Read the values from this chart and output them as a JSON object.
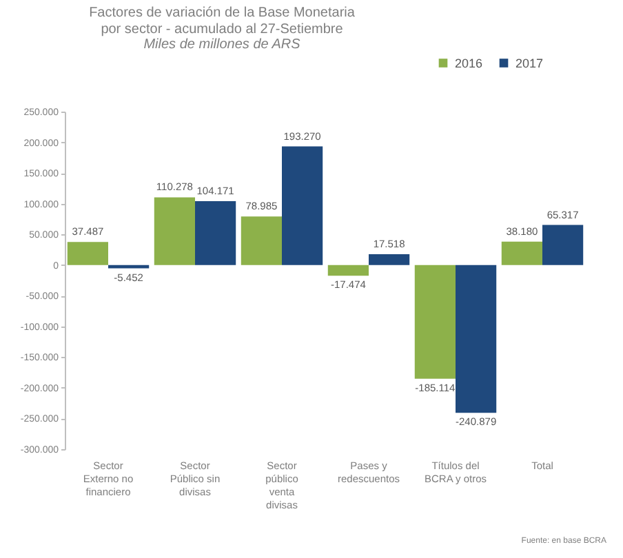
{
  "chart_data": {
    "type": "bar",
    "title": "Factores de variación de la Base Monetaria por sector - acumulado al 27-Setiembre",
    "subtitle": "Miles de millones de ARS",
    "categories": [
      "Sector Externo no financiero",
      "Sector Público sin divisas",
      "Sector público venta divisas",
      "Pases y redescuentos",
      "Títulos del BCRA y otros",
      "Total"
    ],
    "series": [
      {
        "name": "2016",
        "color": "#8db14a",
        "values": [
          37487,
          110278,
          78985,
          -17474,
          -185114,
          38180
        ],
        "value_labels": [
          "37.487",
          "110.278",
          "78.985",
          "-17.474",
          "-185.114",
          "38.180"
        ]
      },
      {
        "name": "2017",
        "color": "#1f497d",
        "values": [
          -5452,
          104171,
          193270,
          17518,
          -240879,
          65317
        ],
        "value_labels": [
          "-5.452",
          "104.171",
          "193.270",
          "17.518",
          "-240.879",
          "65.317"
        ]
      }
    ],
    "ylim": [
      -300000,
      250000
    ],
    "yticks": [
      {
        "value": -300000,
        "label": "-300.000"
      },
      {
        "value": -250000,
        "label": "-250.000"
      },
      {
        "value": -200000,
        "label": "-200.000"
      },
      {
        "value": -150000,
        "label": "-150.000"
      },
      {
        "value": -100000,
        "label": "-100.000"
      },
      {
        "value": -50000,
        "label": "-50.000"
      },
      {
        "value": 0,
        "label": "0"
      },
      {
        "value": 50000,
        "label": "50.000"
      },
      {
        "value": 100000,
        "label": "100.000"
      },
      {
        "value": 150000,
        "label": "150.000"
      },
      {
        "value": 200000,
        "label": "200.000"
      },
      {
        "value": 250000,
        "label": "250.000"
      }
    ],
    "legend": "top right",
    "grid": false,
    "annotations": [
      "Fuente: en base BCRA"
    ]
  }
}
